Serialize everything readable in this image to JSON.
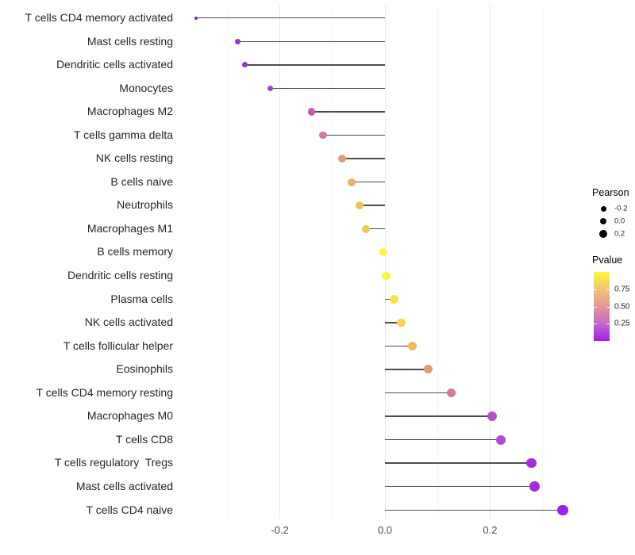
{
  "chart_data": {
    "type": "lollipop",
    "title": "",
    "xlabel": "",
    "ylabel": "",
    "xlim": [
      -0.37,
      0.37
    ],
    "grid": "vertical-only",
    "x_major_ticks": [
      -0.2,
      0.0,
      0.2
    ],
    "x_major_tick_labels": [
      "-0.2",
      "0.0",
      "0.2"
    ],
    "x_minor_ticks": [
      -0.3,
      -0.1,
      0.1,
      0.3
    ],
    "baseline_x": 0.0,
    "points": [
      {
        "label": "T cells CD4 memory activated",
        "pearson": -0.36,
        "color": "#7d20d0",
        "size": 4
      },
      {
        "label": "Mast cells resting",
        "pearson": -0.28,
        "color": "#9833d4",
        "size": 7
      },
      {
        "label": "Dendritic cells activated",
        "pearson": -0.267,
        "color": "#9a34d6",
        "size": 7
      },
      {
        "label": "Monocytes",
        "pearson": -0.218,
        "color": "#a23cd8",
        "size": 7.5
      },
      {
        "label": "Macrophages M2",
        "pearson": -0.14,
        "color": "#c55fa5",
        "size": 9.5
      },
      {
        "label": "T cells gamma delta",
        "pearson": -0.118,
        "color": "#d3789c",
        "size": 9.5
      },
      {
        "label": "NK cells resting",
        "pearson": -0.081,
        "color": "#e39b77",
        "size": 10
      },
      {
        "label": "B cells naive",
        "pearson": -0.063,
        "color": "#ebb260",
        "size": 10
      },
      {
        "label": "Neutrophils",
        "pearson": -0.048,
        "color": "#eec157",
        "size": 10
      },
      {
        "label": "Macrophages M1",
        "pearson": -0.037,
        "color": "#f0ca4e",
        "size": 10
      },
      {
        "label": "B cells memory",
        "pearson": -0.003,
        "color": "#fbf73b",
        "size": 10.5
      },
      {
        "label": "Dendritic cells resting",
        "pearson": 0.002,
        "color": "#faf43e",
        "size": 10.5
      },
      {
        "label": "Plasma cells",
        "pearson": 0.017,
        "color": "#f6e744",
        "size": 10.5
      },
      {
        "label": "NK cells activated",
        "pearson": 0.031,
        "color": "#f3d64c",
        "size": 10.5
      },
      {
        "label": "T cells follicular helper",
        "pearson": 0.052,
        "color": "#eeba5c",
        "size": 11
      },
      {
        "label": "Eosinophils",
        "pearson": 0.082,
        "color": "#e29b72",
        "size": 11
      },
      {
        "label": "T cells CD4 memory resting",
        "pearson": 0.126,
        "color": "#d4789f",
        "size": 11.5
      },
      {
        "label": "Macrophages M0",
        "pearson": 0.204,
        "color": "#b44fd0",
        "size": 12
      },
      {
        "label": "T cells CD8",
        "pearson": 0.22,
        "color": "#b149d4",
        "size": 12
      },
      {
        "label": "T cells regulatory  Tregs",
        "pearson": 0.279,
        "color": "#a42ce0",
        "size": 12.5
      },
      {
        "label": "Mast cells activated",
        "pearson": 0.285,
        "color": "#a42ce0",
        "size": 12.5
      },
      {
        "label": "T cells CD4 naive",
        "pearson": 0.338,
        "color": "#9c1fec",
        "size": 13.5
      }
    ],
    "legend_size": {
      "title": "Pearson",
      "entries": [
        {
          "label": "-0.2",
          "size": 7
        },
        {
          "label": "0.0",
          "size": 8.7
        },
        {
          "label": "0.2",
          "size": 10
        }
      ]
    },
    "legend_color": {
      "title": "Pvalue",
      "gradient_bottom_to_top": [
        "#9f1dea",
        "#c566cb",
        "#e49699",
        "#f4c473",
        "#fbf73c"
      ],
      "ticks": [
        {
          "label": "0.75",
          "frac_from_top": 0.25
        },
        {
          "label": "0.50",
          "frac_from_top": 0.5
        },
        {
          "label": "0.25",
          "frac_from_top": 0.75
        }
      ]
    },
    "colors": {
      "segment": "#4d4d4d",
      "grid_major": "#e8e8e8",
      "grid_minor": "#f4f4f4",
      "axis_text": "#4d4d4d",
      "category_text": "#262626"
    }
  }
}
